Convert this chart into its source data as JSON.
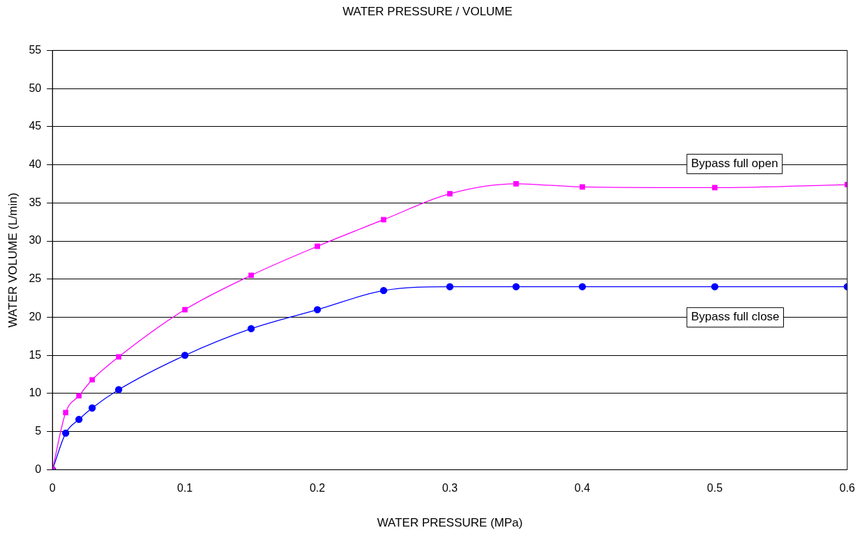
{
  "chart_data": {
    "type": "line",
    "title": "WATER PRESSURE / VOLUME",
    "xlabel": "WATER PRESSURE (MPa)",
    "ylabel": "WATER VOLUME (L/min)",
    "x": [
      0,
      0.01,
      0.02,
      0.03,
      0.05,
      0.1,
      0.15,
      0.2,
      0.25,
      0.3,
      0.35,
      0.4,
      0.5,
      0.6
    ],
    "series": [
      {
        "name": "Bypass full open",
        "color": "#ff00ff",
        "marker": "square",
        "values": [
          0,
          7.5,
          9.7,
          11.8,
          14.8,
          21,
          25.5,
          29.3,
          32.8,
          36.2,
          37.5,
          37.1,
          37,
          37.4
        ]
      },
      {
        "name": "Bypass full close",
        "color": "#0000ff",
        "marker": "circle",
        "values": [
          0,
          4.8,
          6.6,
          8.1,
          10.5,
          15,
          18.5,
          21,
          23.5,
          24,
          24,
          24,
          24,
          24
        ]
      }
    ],
    "xlim": [
      0,
      0.6
    ],
    "xticks": [
      0,
      0.1,
      0.2,
      0.3,
      0.4,
      0.5,
      0.6
    ],
    "ylim": [
      0,
      55
    ],
    "yticks": [
      0,
      5,
      10,
      15,
      20,
      25,
      30,
      35,
      40,
      45,
      50,
      55
    ],
    "grid": "y",
    "legend": false
  }
}
